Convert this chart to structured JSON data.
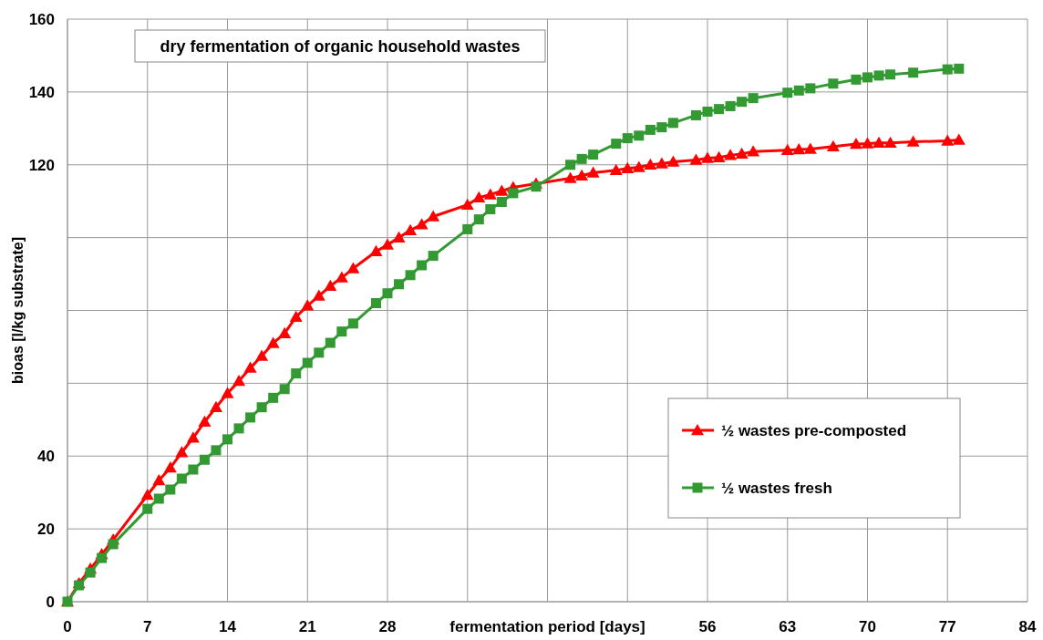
{
  "chart_data": {
    "type": "line",
    "title": "dry fermentation of organic household wastes",
    "xlabel": "fermentation period [days]",
    "ylabel": "bioas [l/kg substrate]",
    "xlim": [
      0,
      84
    ],
    "xticks": [
      0,
      7,
      14,
      21,
      28,
      {
        "value": 35,
        "label": null
      },
      {
        "value": 42,
        "label": null
      },
      {
        "value": 49,
        "label": null
      },
      56,
      63,
      70,
      77,
      84
    ],
    "ylim": [
      0,
      160
    ],
    "yticks": [
      0,
      20,
      40,
      {
        "value": 60,
        "label": null
      },
      {
        "value": 80,
        "label": null
      },
      {
        "value": 100,
        "label": null
      },
      120,
      140,
      160
    ],
    "grid": true,
    "legend": "bottom right",
    "line_style": "solid",
    "series": [
      {
        "name": "½ wastes pre-composted",
        "color": "#ff0000",
        "marker": "triangle",
        "x": [
          0,
          1,
          2,
          3,
          4,
          7,
          8,
          9,
          10,
          11,
          12,
          13,
          14,
          15,
          16,
          17,
          18,
          19,
          20,
          21,
          22,
          23,
          24,
          25,
          27,
          28,
          29,
          30,
          31,
          32,
          35,
          36,
          37,
          38,
          39,
          41,
          44,
          45,
          46,
          48,
          49,
          50,
          51,
          52,
          53,
          55,
          56,
          57,
          58,
          59,
          60,
          63,
          64,
          65,
          67,
          69,
          70,
          71,
          72,
          74,
          77,
          78
        ],
        "values": [
          0,
          5,
          9,
          13,
          17,
          29.3,
          33.3,
          36.8,
          41,
          45,
          49.4,
          53.4,
          57.2,
          60.6,
          64.2,
          67.5,
          71,
          73.7,
          78.2,
          81.3,
          84,
          86.7,
          89,
          91.5,
          96.2,
          98,
          100,
          102,
          103.6,
          105.8,
          109,
          111,
          111.8,
          112.8,
          113.8,
          114.8,
          116.3,
          117,
          117.8,
          118.5,
          119,
          119.3,
          120,
          120.3,
          120.8,
          121.3,
          121.8,
          122,
          122.6,
          123,
          123.6,
          124,
          124.2,
          124.3,
          125,
          125.7,
          125.8,
          126,
          126,
          126.3,
          126.6,
          126.8
        ]
      },
      {
        "name": "½ wastes fresh",
        "color": "#339933",
        "marker": "square",
        "x": [
          0,
          1,
          2,
          3,
          4,
          7,
          8,
          9,
          10,
          11,
          12,
          13,
          14,
          15,
          16,
          17,
          18,
          19,
          20,
          21,
          22,
          23,
          24,
          25,
          27,
          28,
          29,
          30,
          31,
          32,
          35,
          36,
          37,
          38,
          39,
          41,
          44,
          45,
          46,
          48,
          49,
          50,
          51,
          52,
          53,
          55,
          56,
          57,
          58,
          59,
          60,
          63,
          64,
          65,
          67,
          69,
          70,
          71,
          72,
          74,
          77,
          78
        ],
        "values": [
          0,
          4.5,
          8,
          12,
          15.8,
          25.5,
          28.3,
          30.8,
          33.8,
          36.3,
          39,
          41.6,
          44.6,
          47.6,
          50.6,
          53.4,
          56,
          58.4,
          62.7,
          65.6,
          68.4,
          71.1,
          74.2,
          76.4,
          82,
          84.7,
          87.2,
          89.7,
          92.4,
          95,
          102.3,
          105,
          107.8,
          109.8,
          112.2,
          114,
          120,
          121.6,
          122.8,
          125.8,
          127.3,
          128,
          129.6,
          130.3,
          131.5,
          133.6,
          134.6,
          135.3,
          136.1,
          137.3,
          138.3,
          139.8,
          140.4,
          141,
          142.3,
          143.4,
          144,
          144.5,
          144.8,
          145.3,
          146.2,
          146.4
        ]
      }
    ]
  }
}
